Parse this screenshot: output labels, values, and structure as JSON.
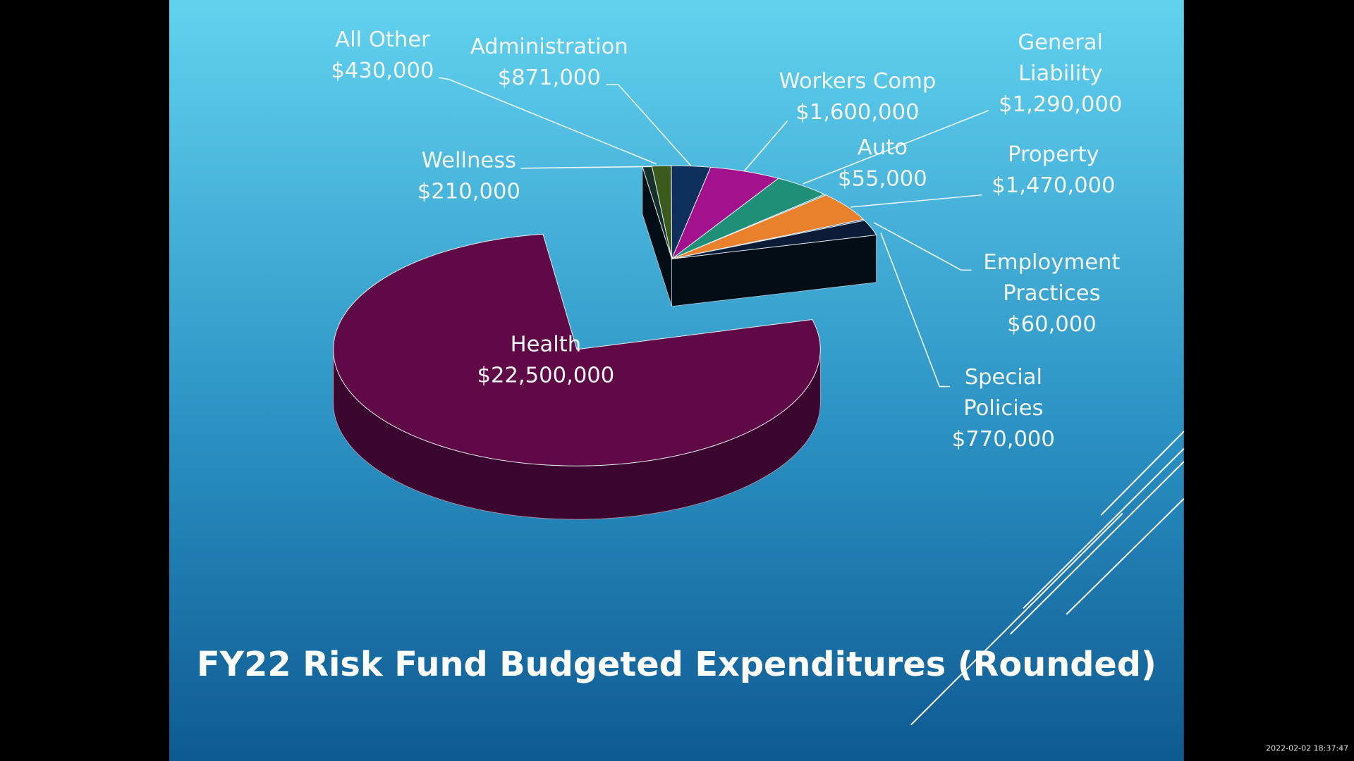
{
  "chart_data": {
    "type": "pie",
    "title": "FY22 Risk Fund Budgeted Expenditures (Rounded)",
    "categories": [
      "Wellness",
      "All Other",
      "Administration",
      "Workers Comp",
      "General Liability",
      "Auto",
      "Property",
      "Employment Practices",
      "Special Policies",
      "Health"
    ],
    "values": [
      210000,
      430000,
      871000,
      1600000,
      1290000,
      55000,
      1470000,
      60000,
      770000,
      22500000
    ],
    "value_labels": [
      "$210,000",
      "$430,000",
      "$871,000",
      "$1,600,000",
      "$1,290,000",
      "$55,000",
      "$1,470,000",
      "$60,000",
      "$770,000",
      "$22,500,000"
    ],
    "colors": [
      "#16302c",
      "#3b5a1c",
      "#0f2f5c",
      "#a3128c",
      "#1f8f78",
      "#4fa8b0",
      "#e8802c",
      "#24386a",
      "#0c1c36",
      "#5f0a47"
    ]
  },
  "timestamp": "2022-02-02 18:37:47"
}
